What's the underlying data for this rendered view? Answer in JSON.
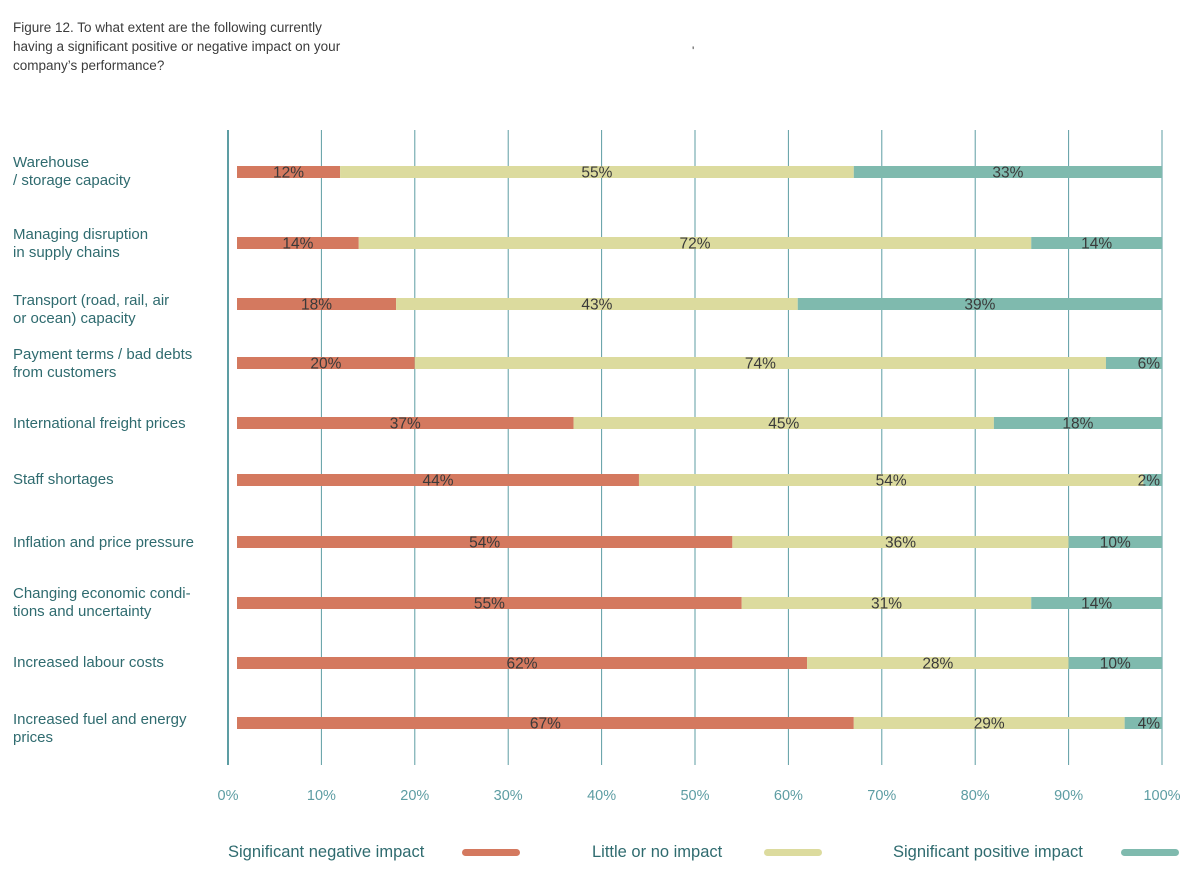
{
  "figure_title": "Figure 12. To what extent are the following currently having a significant positive or negative impact on your company’s performance?",
  "stray_mark": "'",
  "colors": {
    "negative": "#d4795f",
    "neutral": "#dcdb9e",
    "positive": "#7fbaae",
    "grid": "#5d9da3",
    "text": "#2f6b6f"
  },
  "chart_data": {
    "type": "bar",
    "orientation": "horizontal",
    "stacked": true,
    "title": "Figure 12. To what extent are the following currently having a significant positive or negative impact on your company’s performance?",
    "categories": [
      "Warehouse\n/ storage capacity",
      "Managing disruption\nin supply chains",
      "Transport (road, rail, air\nor ocean) capacity",
      "Payment terms / bad debts\nfrom customers",
      "International freight prices",
      "Staff shortages",
      "Inflation and price pressure",
      "Changing economic condi-\ntions and uncertainty",
      "Increased labour costs",
      "Increased fuel and energy\nprices"
    ],
    "series": [
      {
        "name": "Significant negative impact",
        "values": [
          12,
          14,
          18,
          20,
          37,
          44,
          54,
          55,
          62,
          67
        ]
      },
      {
        "name": "Little or no impact",
        "values": [
          55,
          72,
          43,
          74,
          45,
          54,
          36,
          31,
          28,
          29
        ]
      },
      {
        "name": "Significant positive impact",
        "values": [
          33,
          14,
          39,
          6,
          18,
          2,
          10,
          14,
          10,
          4
        ]
      }
    ],
    "xlim": [
      0,
      100
    ],
    "xticks": [
      "0%",
      "10%",
      "20%",
      "30%",
      "40%",
      "50%",
      "60%",
      "70%",
      "80%",
      "90%",
      "100%"
    ],
    "grid": true,
    "legend_position": "bottom"
  }
}
